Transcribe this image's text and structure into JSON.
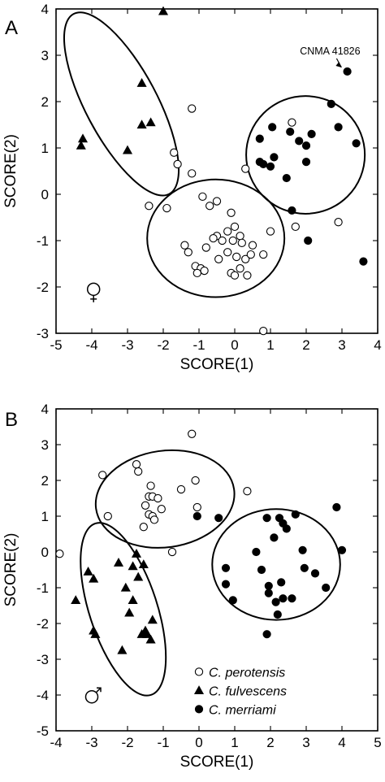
{
  "chart_data": [
    {
      "panel": "A",
      "type": "scatter",
      "xlabel": "SCORE(1)",
      "ylabel": "SCORE(2)",
      "xlim": [
        -5,
        4
      ],
      "ylim": [
        -3,
        4
      ],
      "xticks": [
        -5,
        -4,
        -3,
        -2,
        -1,
        0,
        1,
        2,
        3,
        4
      ],
      "yticks": [
        -3,
        -2,
        -1,
        0,
        1,
        2,
        3,
        4
      ],
      "sex_symbol": "female-symbol",
      "annotation": {
        "text": "CNMA 41826",
        "point": [
          3.1,
          2.65
        ]
      },
      "series": [
        {
          "name": "C. perotensis",
          "marker": "open-circle",
          "points": [
            [
              -1.2,
              1.85
            ],
            [
              -1.7,
              0.9
            ],
            [
              -1.6,
              0.65
            ],
            [
              -1.2,
              0.45
            ],
            [
              -2.4,
              -0.25
            ],
            [
              -1.9,
              -0.3
            ],
            [
              -0.9,
              -0.05
            ],
            [
              -0.7,
              -0.25
            ],
            [
              -0.5,
              -0.15
            ],
            [
              -0.1,
              -0.4
            ],
            [
              0.3,
              0.55
            ],
            [
              1.6,
              1.55
            ],
            [
              -0.2,
              -0.8
            ],
            [
              0.0,
              -0.7
            ],
            [
              0.15,
              -0.9
            ],
            [
              -0.05,
              -1.0
            ],
            [
              0.2,
              -1.05
            ],
            [
              0.5,
              -1.1
            ],
            [
              -0.5,
              -0.9
            ],
            [
              -0.6,
              -0.95
            ],
            [
              -0.35,
              -1.0
            ],
            [
              -1.4,
              -1.1
            ],
            [
              -1.3,
              -1.25
            ],
            [
              -0.8,
              -1.15
            ],
            [
              -0.45,
              -1.4
            ],
            [
              -0.2,
              -1.25
            ],
            [
              0.05,
              -1.35
            ],
            [
              0.3,
              -1.4
            ],
            [
              0.45,
              -1.3
            ],
            [
              0.8,
              -1.3
            ],
            [
              -1.1,
              -1.55
            ],
            [
              -0.95,
              -1.6
            ],
            [
              -1.05,
              -1.7
            ],
            [
              -0.85,
              -1.65
            ],
            [
              -0.1,
              -1.7
            ],
            [
              0.0,
              -1.75
            ],
            [
              0.15,
              -1.6
            ],
            [
              0.35,
              -1.75
            ],
            [
              1.0,
              -0.8
            ],
            [
              1.7,
              -0.7
            ],
            [
              2.9,
              -0.6
            ],
            [
              0.8,
              -2.95
            ]
          ]
        },
        {
          "name": "C. fulvescens",
          "marker": "filled-triangle",
          "points": [
            [
              -4.25,
              1.2
            ],
            [
              -4.3,
              1.05
            ],
            [
              -3.0,
              0.95
            ],
            [
              -2.6,
              2.4
            ],
            [
              -2.6,
              1.5
            ],
            [
              -2.35,
              1.55
            ],
            [
              -2.0,
              3.95
            ]
          ]
        },
        {
          "name": "C. merriami",
          "marker": "filled-circle",
          "points": [
            [
              3.15,
              2.65
            ],
            [
              2.7,
              1.95
            ],
            [
              1.05,
              1.45
            ],
            [
              1.55,
              1.35
            ],
            [
              1.8,
              1.15
            ],
            [
              2.15,
              1.3
            ],
            [
              2.9,
              1.45
            ],
            [
              3.4,
              1.1
            ],
            [
              0.7,
              1.2
            ],
            [
              0.7,
              0.7
            ],
            [
              0.8,
              0.65
            ],
            [
              1.0,
              0.6
            ],
            [
              1.1,
              0.8
            ],
            [
              2.0,
              0.7
            ],
            [
              1.45,
              0.35
            ],
            [
              2.0,
              1.05
            ],
            [
              1.6,
              -0.35
            ],
            [
              2.05,
              -1.0
            ],
            [
              3.6,
              -1.45
            ]
          ]
        }
      ],
      "ellipses": [
        {
          "group": "C. fulvescens",
          "cx": -3.17,
          "cy": 1.95,
          "rx": 1.0,
          "ry": 2.2,
          "angle_deg": -28
        },
        {
          "group": "C. perotensis",
          "cx": -0.53,
          "cy": -0.95,
          "rx": 1.92,
          "ry": 1.27,
          "angle_deg": 0
        },
        {
          "group": "C. merriami",
          "cx": 1.98,
          "cy": 0.85,
          "rx": 1.66,
          "ry": 1.27,
          "angle_deg": 0
        }
      ]
    },
    {
      "panel": "B",
      "type": "scatter",
      "xlabel": "SCORE(1)",
      "ylabel": "SCORE(2)",
      "xlim": [
        -4,
        5
      ],
      "ylim": [
        -5,
        4
      ],
      "xticks": [
        -4,
        -3,
        -2,
        -1,
        0,
        1,
        2,
        3,
        4,
        5
      ],
      "yticks": [
        -5,
        -4,
        -3,
        -2,
        -1,
        0,
        1,
        2,
        3,
        4
      ],
      "sex_symbol": "male-symbol",
      "legend": {
        "placement": "bottom-right"
      },
      "series": [
        {
          "name": "C. perotensis",
          "marker": "open-circle",
          "points": [
            [
              -0.2,
              3.3
            ],
            [
              -1.75,
              2.45
            ],
            [
              -1.7,
              2.25
            ],
            [
              -2.7,
              2.15
            ],
            [
              -1.35,
              1.85
            ],
            [
              -0.5,
              1.75
            ],
            [
              -0.1,
              2.0
            ],
            [
              1.35,
              1.7
            ],
            [
              -1.4,
              1.55
            ],
            [
              -1.3,
              1.55
            ],
            [
              -1.15,
              1.5
            ],
            [
              -1.5,
              1.3
            ],
            [
              -1.4,
              1.05
            ],
            [
              -1.05,
              1.2
            ],
            [
              -1.3,
              1.0
            ],
            [
              -1.25,
              0.9
            ],
            [
              -2.55,
              1.0
            ],
            [
              -1.55,
              0.7
            ],
            [
              -0.05,
              1.25
            ],
            [
              -0.75,
              0.0
            ],
            [
              -3.9,
              -0.05
            ]
          ]
        },
        {
          "name": "C. fulvescens",
          "marker": "filled-triangle",
          "points": [
            [
              -3.1,
              -0.55
            ],
            [
              -2.95,
              -0.75
            ],
            [
              -2.25,
              -0.3
            ],
            [
              -1.85,
              -0.4
            ],
            [
              -1.75,
              -0.05
            ],
            [
              -1.55,
              -0.35
            ],
            [
              -1.7,
              -0.7
            ],
            [
              -2.05,
              -1.0
            ],
            [
              -1.85,
              -1.35
            ],
            [
              -1.95,
              -1.7
            ],
            [
              -1.3,
              -1.9
            ],
            [
              -3.45,
              -1.35
            ],
            [
              -2.95,
              -2.2
            ],
            [
              -2.9,
              -2.3
            ],
            [
              -1.6,
              -2.3
            ],
            [
              -1.5,
              -2.2
            ],
            [
              -1.35,
              -2.45
            ],
            [
              -1.45,
              -2.3
            ],
            [
              -2.15,
              -2.75
            ]
          ]
        },
        {
          "name": "C. merriami",
          "marker": "filled-circle",
          "points": [
            [
              -0.05,
              1.0
            ],
            [
              0.55,
              0.95
            ],
            [
              1.9,
              0.95
            ],
            [
              2.25,
              0.95
            ],
            [
              2.35,
              0.8
            ],
            [
              2.7,
              1.05
            ],
            [
              3.85,
              1.25
            ],
            [
              2.45,
              0.65
            ],
            [
              2.1,
              0.4
            ],
            [
              2.9,
              0.05
            ],
            [
              4.0,
              0.05
            ],
            [
              1.6,
              0.0
            ],
            [
              0.75,
              -0.45
            ],
            [
              1.75,
              -0.5
            ],
            [
              2.95,
              -0.45
            ],
            [
              0.75,
              -0.9
            ],
            [
              1.95,
              -0.95
            ],
            [
              2.3,
              -0.85
            ],
            [
              3.25,
              -0.6
            ],
            [
              3.55,
              -1.0
            ],
            [
              0.95,
              -1.35
            ],
            [
              1.95,
              -1.15
            ],
            [
              2.15,
              -1.4
            ],
            [
              2.35,
              -1.3
            ],
            [
              2.6,
              -1.3
            ],
            [
              2.2,
              -1.75
            ],
            [
              1.9,
              -2.3
            ]
          ]
        }
      ],
      "ellipses": [
        {
          "group": "C. perotensis",
          "cx": -0.95,
          "cy": 1.48,
          "rx": 1.95,
          "ry": 1.35,
          "angle_deg": -8
        },
        {
          "group": "C. fulvescens",
          "cx": -2.12,
          "cy": -1.6,
          "rx": 0.95,
          "ry": 2.52,
          "angle_deg": -18
        },
        {
          "group": "C. merriami",
          "cx": 2.16,
          "cy": -0.35,
          "rx": 1.79,
          "ry": 1.55,
          "angle_deg": 0
        }
      ]
    }
  ]
}
